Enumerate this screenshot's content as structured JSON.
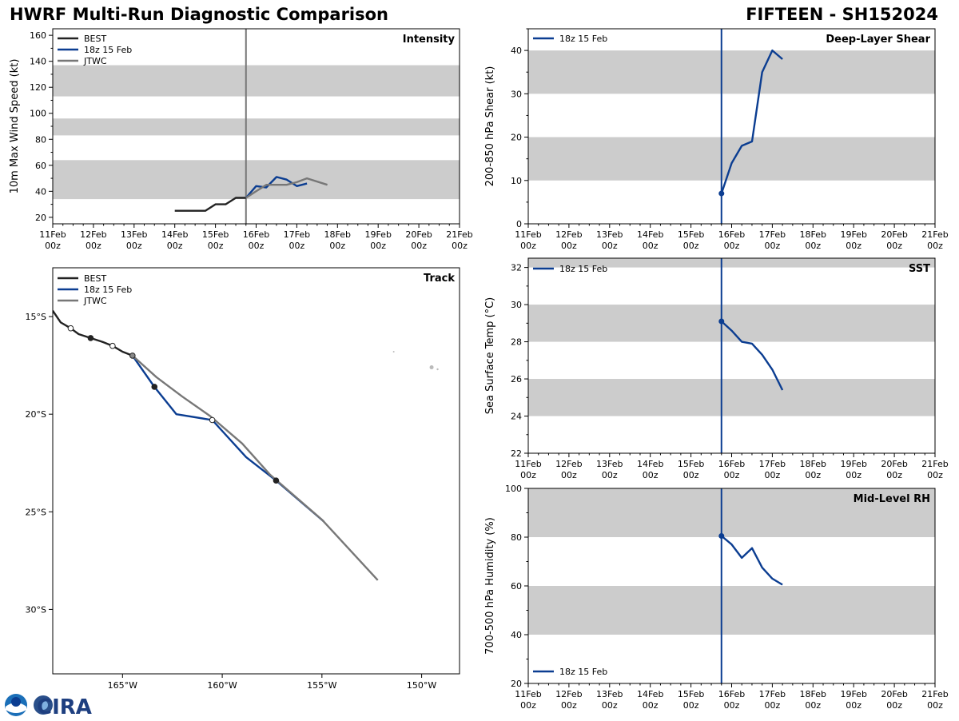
{
  "header": {
    "title_left": "HWRF Multi-Run Diagnostic Comparison",
    "title_right": "FIFTEEN - SH152024"
  },
  "colors": {
    "best": "#222222",
    "run": "#0b3d91",
    "jtwc": "#777777",
    "band": "#cccccc",
    "vline_intensity": "#777777",
    "vline_diag": "#0b3d91"
  },
  "logo": {
    "text": "CIRA"
  },
  "time_axis": {
    "start_day": 11,
    "end_day": 21,
    "ticks": [
      {
        "day": 11,
        "label1": "11Feb",
        "label2": "00z"
      },
      {
        "day": 12,
        "label1": "12Feb",
        "label2": "00z"
      },
      {
        "day": 13,
        "label1": "13Feb",
        "label2": "00z"
      },
      {
        "day": 14,
        "label1": "14Feb",
        "label2": "00z"
      },
      {
        "day": 15,
        "label1": "15Feb",
        "label2": "00z"
      },
      {
        "day": 16,
        "label1": "16Feb",
        "label2": "00z"
      },
      {
        "day": 17,
        "label1": "17Feb",
        "label2": "00z"
      },
      {
        "day": 18,
        "label1": "18Feb",
        "label2": "00z"
      },
      {
        "day": 19,
        "label1": "19Feb",
        "label2": "00z"
      },
      {
        "day": 20,
        "label1": "20Feb",
        "label2": "00z"
      },
      {
        "day": 21,
        "label1": "21Feb",
        "label2": "00z"
      }
    ],
    "init_day": 15.75
  },
  "chart_data": [
    {
      "id": "intensity",
      "type": "line",
      "title": "Intensity",
      "ylabel": "10m Max Wind Speed (kt)",
      "ylim": [
        15,
        165
      ],
      "yticks": [
        20,
        40,
        60,
        80,
        100,
        120,
        140,
        160
      ],
      "bands": [
        [
          34,
          64
        ],
        [
          83,
          96
        ],
        [
          113,
          137
        ]
      ],
      "vline": 15.75,
      "legend": [
        "BEST",
        "18z 15 Feb",
        "JTWC"
      ],
      "series": [
        {
          "name": "BEST",
          "x": [
            14.0,
            14.25,
            14.5,
            14.75,
            15.0,
            15.25,
            15.5,
            15.75
          ],
          "y": [
            25,
            25,
            25,
            25,
            30,
            30,
            35,
            35
          ]
        },
        {
          "name": "18z 15 Feb",
          "x": [
            15.75,
            16.0,
            16.25,
            16.5,
            16.75,
            17.0,
            17.25
          ],
          "y": [
            35,
            44,
            43,
            51,
            49,
            44,
            46
          ]
        },
        {
          "name": "JTWC",
          "x": [
            15.75,
            16.0,
            16.25,
            16.5,
            16.75,
            17.0,
            17.25,
            17.75
          ],
          "y": [
            35,
            40,
            45,
            45,
            45,
            47,
            50,
            45
          ]
        }
      ]
    },
    {
      "id": "shear",
      "type": "line",
      "title": "Deep-Layer Shear",
      "ylabel": "200-850 hPa Shear (kt)",
      "ylim": [
        0,
        45
      ],
      "yticks": [
        0,
        10,
        20,
        30,
        40
      ],
      "bands": [
        [
          10,
          20
        ],
        [
          30,
          40
        ]
      ],
      "vline": 15.75,
      "legend": [
        "18z 15 Feb"
      ],
      "series": [
        {
          "name": "18z 15 Feb",
          "x": [
            15.75,
            16.0,
            16.25,
            16.5,
            16.75,
            17.0,
            17.25
          ],
          "y": [
            7,
            14,
            18,
            19,
            35,
            40,
            38
          ]
        }
      ]
    },
    {
      "id": "sst",
      "type": "line",
      "title": "SST",
      "ylabel": "Sea Surface Temp (°C)",
      "ylim": [
        22,
        32.5
      ],
      "yticks": [
        22,
        24,
        26,
        28,
        30,
        32
      ],
      "bands": [
        [
          24,
          26
        ],
        [
          28,
          30
        ],
        [
          32,
          34
        ]
      ],
      "vline": 15.75,
      "legend": [
        "18z 15 Feb"
      ],
      "series": [
        {
          "name": "18z 15 Feb",
          "x": [
            15.75,
            16.0,
            16.25,
            16.5,
            16.75,
            17.0,
            17.25
          ],
          "y": [
            29.1,
            28.6,
            28.0,
            27.9,
            27.3,
            26.5,
            25.4
          ]
        }
      ]
    },
    {
      "id": "rh",
      "type": "line",
      "title": "Mid-Level RH",
      "ylabel": "700-500 hPa Humidity (%)",
      "ylim": [
        20,
        100
      ],
      "yticks": [
        20,
        40,
        60,
        80,
        100
      ],
      "bands": [
        [
          40,
          60
        ],
        [
          80,
          100
        ]
      ],
      "vline": 15.75,
      "legend": [
        "18z 15 Feb"
      ],
      "series": [
        {
          "name": "18z 15 Feb",
          "x": [
            15.75,
            16.0,
            16.25,
            16.5,
            16.75,
            17.0,
            17.25
          ],
          "y": [
            80.5,
            77,
            71.5,
            75.5,
            67.5,
            63,
            60.5
          ]
        }
      ]
    },
    {
      "id": "track",
      "type": "line",
      "title": "Track",
      "xlim": [
        -168.5,
        -148.1
      ],
      "ylim": [
        -33.3,
        -12.5
      ],
      "xticks": [
        {
          "v": -165,
          "label": "165°W"
        },
        {
          "v": -160,
          "label": "160°W"
        },
        {
          "v": -155,
          "label": "155°W"
        },
        {
          "v": -150,
          "label": "150°W"
        }
      ],
      "yticks": [
        {
          "v": -15,
          "label": "15°S"
        },
        {
          "v": -20,
          "label": "20°S"
        },
        {
          "v": -25,
          "label": "25°S"
        },
        {
          "v": -30,
          "label": "30°S"
        }
      ],
      "legend": [
        "BEST",
        "18z 15 Feb",
        "JTWC"
      ],
      "series": [
        {
          "name": "BEST",
          "x": [
            -168.5,
            -168.1,
            -167.6,
            -167.2,
            -166.6,
            -166.0,
            -165.5,
            -165.0,
            -164.5
          ],
          "y": [
            -14.7,
            -15.3,
            -15.6,
            -15.9,
            -16.1,
            -16.3,
            -16.5,
            -16.8,
            -17.0
          ]
        },
        {
          "name": "18z 15 Feb",
          "x": [
            -164.5,
            -163.4,
            -162.3,
            -160.5,
            -158.8,
            -157.3,
            -154.9
          ],
          "y": [
            -17.0,
            -18.6,
            -20.0,
            -20.3,
            -22.2,
            -23.4,
            -25.5
          ]
        },
        {
          "name": "JTWC",
          "x": [
            -164.5,
            -163.3,
            -162.0,
            -160.6,
            -159.0,
            -157.6,
            -155.0,
            -152.2
          ],
          "y": [
            -17.0,
            -18.1,
            -19.1,
            -20.1,
            -21.5,
            -23.1,
            -25.4,
            -28.5
          ]
        }
      ],
      "markers": [
        {
          "x": -167.6,
          "y": -15.6,
          "style": "open"
        },
        {
          "x": -166.6,
          "y": -16.1,
          "style": "filled"
        },
        {
          "x": -165.5,
          "y": -16.5,
          "style": "open"
        },
        {
          "x": -164.5,
          "y": -17.0,
          "style": "gray"
        },
        {
          "x": -163.4,
          "y": -18.6,
          "style": "filled"
        },
        {
          "x": -160.5,
          "y": -20.3,
          "style": "open"
        },
        {
          "x": -157.3,
          "y": -23.4,
          "style": "filled"
        }
      ]
    }
  ]
}
